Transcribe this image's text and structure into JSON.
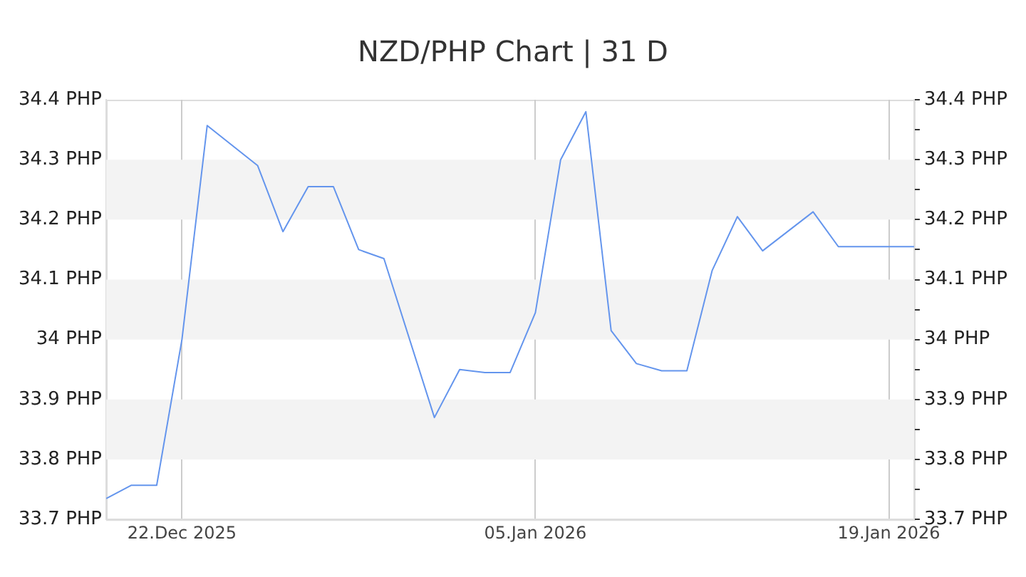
{
  "chart_data": {
    "type": "line",
    "title": "NZD/PHP Chart | 31 D",
    "x": [
      "2025-12-19",
      "2025-12-20",
      "2025-12-21",
      "2025-12-22",
      "2025-12-23",
      "2025-12-25",
      "2025-12-26",
      "2025-12-27",
      "2025-12-28",
      "2025-12-29",
      "2025-12-30",
      "2026-01-01",
      "2026-01-02",
      "2026-01-03",
      "2026-01-04",
      "2026-01-05",
      "2026-01-06",
      "2026-01-07",
      "2026-01-08",
      "2026-01-09",
      "2026-01-10",
      "2026-01-11",
      "2026-01-12",
      "2026-01-13",
      "2026-01-14",
      "2026-01-16",
      "2026-01-17",
      "2026-01-20"
    ],
    "series": [
      {
        "color": "#6495ed",
        "values": [
          33.735,
          33.757,
          33.757,
          34.0,
          34.357,
          34.29,
          34.18,
          34.255,
          34.255,
          34.15,
          34.135,
          33.87,
          33.95,
          33.945,
          33.945,
          34.045,
          34.3,
          34.38,
          34.015,
          33.96,
          33.948,
          33.948,
          34.115,
          34.205,
          34.148,
          34.213,
          34.155,
          34.155
        ]
      }
    ],
    "xlim": [
      "2025-12-19",
      "2026-01-20"
    ],
    "xticks": [
      {
        "value": "2025-12-22",
        "label": "22.Dec 2025"
      },
      {
        "value": "2026-01-05",
        "label": "05.Jan 2026"
      },
      {
        "value": "2026-01-19",
        "label": "19.Jan 2026"
      }
    ],
    "ylim": [
      33.7,
      34.4
    ],
    "yticks": [
      {
        "value": 33.7,
        "label": "33.7 PHP"
      },
      {
        "value": 33.8,
        "label": "33.8 PHP"
      },
      {
        "value": 33.9,
        "label": "33.9 PHP"
      },
      {
        "value": 34.0,
        "label": "34 PHP"
      },
      {
        "value": 34.1,
        "label": "34.1 PHP"
      },
      {
        "value": 34.2,
        "label": "34.2 PHP"
      },
      {
        "value": 34.3,
        "label": "34.3 PHP"
      },
      {
        "value": 34.4,
        "label": "34.4 PHP"
      }
    ],
    "y2lim": [
      33.7,
      34.4
    ],
    "y2ticks": [
      {
        "value": 33.7,
        "label": "33.7 PHP"
      },
      {
        "value": 33.75,
        "label": null
      },
      {
        "value": 33.8,
        "label": "33.8 PHP"
      },
      {
        "value": 33.85,
        "label": null
      },
      {
        "value": 33.9,
        "label": "33.9 PHP"
      },
      {
        "value": 33.95,
        "label": null
      },
      {
        "value": 34.0,
        "label": "34 PHP"
      },
      {
        "value": 34.05,
        "label": null
      },
      {
        "value": 34.1,
        "label": "34.1 PHP"
      },
      {
        "value": 34.15,
        "label": null
      },
      {
        "value": 34.2,
        "label": "34.2 PHP"
      },
      {
        "value": 34.25,
        "label": null
      },
      {
        "value": 34.3,
        "label": "34.3 PHP"
      },
      {
        "value": 34.35,
        "label": null
      },
      {
        "value": 34.4,
        "label": "34.4 PHP"
      }
    ],
    "bands": [
      {
        "axis": "y",
        "from": 33.8,
        "to": 33.9,
        "color": "#f3f3f3"
      },
      {
        "axis": "y",
        "from": 34.0,
        "to": 34.1,
        "color": "#f3f3f3"
      },
      {
        "axis": "y",
        "from": 34.2,
        "to": 34.3,
        "color": "#f3f3f3"
      }
    ],
    "grid": "x",
    "marker": "none",
    "line_style": "solid",
    "legend": false
  }
}
